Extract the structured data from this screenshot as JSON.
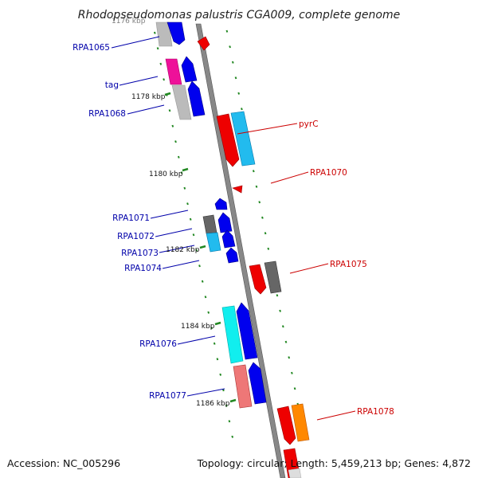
{
  "title": "Rhodopseudomonas palustris CGA009, complete genome",
  "accession": "Accession: NC_005296",
  "summary": "Topology: circular; Length: 5,459,213 bp; Genes: 4,872",
  "ticks": [
    {
      "label": "1176 kbp"
    },
    {
      "label": "1178 kbp"
    },
    {
      "label": "1180 kbp"
    },
    {
      "label": "1182 kbp"
    },
    {
      "label": "1184 kbp"
    },
    {
      "label": "1186 kbp"
    }
  ],
  "gene_labels": [
    {
      "id": "rpa1065",
      "text": "RPA1065",
      "strand": "minus"
    },
    {
      "id": "tag",
      "text": "tag",
      "strand": "minus"
    },
    {
      "id": "rpa1068",
      "text": "RPA1068",
      "strand": "minus"
    },
    {
      "id": "pyrc",
      "text": "pyrC",
      "strand": "plus"
    },
    {
      "id": "rpa1070",
      "text": "RPA1070",
      "strand": "plus"
    },
    {
      "id": "rpa1071",
      "text": "RPA1071",
      "strand": "minus"
    },
    {
      "id": "rpa1072",
      "text": "RPA1072",
      "strand": "minus"
    },
    {
      "id": "rpa1073",
      "text": "RPA1073",
      "strand": "minus"
    },
    {
      "id": "rpa1074",
      "text": "RPA1074",
      "strand": "minus"
    },
    {
      "id": "rpa1075",
      "text": "RPA1075",
      "strand": "plus"
    },
    {
      "id": "rpa1076",
      "text": "RPA1076",
      "strand": "minus"
    },
    {
      "id": "rpa1077",
      "text": "RPA1077",
      "strand": "minus"
    },
    {
      "id": "rpa1078",
      "text": "RPA1078",
      "strand": "plus"
    }
  ],
  "colors": {
    "backbone": "#888888",
    "minus_label": "#0000aa",
    "plus_label": "#cc0000",
    "cds_blue": "#0000ee",
    "cds_red": "#ee0000",
    "gc_gray": "#bbbbbb",
    "gc_magenta": "#ee1199",
    "gc_cyan": "#22bbee",
    "gc_darkgray": "#666666",
    "gc_aqua": "#11eeee",
    "gc_pink": "#ee7777",
    "gc_orange": "#ff8800",
    "tick_green": "#228822"
  }
}
